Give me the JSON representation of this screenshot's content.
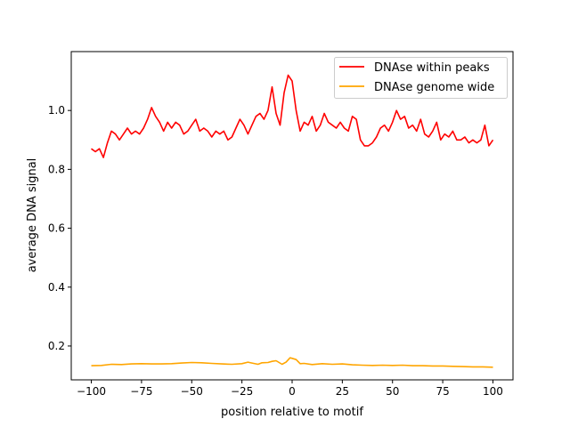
{
  "chart_data": {
    "type": "line",
    "title": "",
    "xlabel": "position relative to motif",
    "ylabel": "average DNA signal",
    "xlim": [
      -110,
      110
    ],
    "ylim": [
      0.085,
      1.2
    ],
    "xticks": [
      -100,
      -75,
      -50,
      -25,
      0,
      25,
      50,
      75,
      100
    ],
    "xtick_labels": [
      "−100",
      "−75",
      "−50",
      "−25",
      "0",
      "25",
      "50",
      "75",
      "100"
    ],
    "yticks": [
      0.2,
      0.4,
      0.6,
      0.8,
      1.0
    ],
    "ytick_labels": [
      "0.2",
      "0.4",
      "0.6",
      "0.8",
      "1.0"
    ],
    "grid": false,
    "legend_position": "top-right",
    "series": [
      {
        "name": "DNAse within peaks",
        "color": "#ff0000",
        "x": [
          -100,
          -98,
          -96,
          -94,
          -92,
          -90,
          -88,
          -86,
          -84,
          -82,
          -80,
          -78,
          -76,
          -74,
          -72,
          -70,
          -68,
          -66,
          -64,
          -62,
          -60,
          -58,
          -56,
          -54,
          -52,
          -50,
          -48,
          -46,
          -44,
          -42,
          -40,
          -38,
          -36,
          -34,
          -32,
          -30,
          -28,
          -26,
          -24,
          -22,
          -20,
          -18,
          -16,
          -14,
          -12,
          -10,
          -8,
          -6,
          -4,
          -2,
          0,
          2,
          4,
          6,
          8,
          10,
          12,
          14,
          16,
          18,
          20,
          22,
          24,
          26,
          28,
          30,
          32,
          34,
          36,
          38,
          40,
          42,
          44,
          46,
          48,
          50,
          52,
          54,
          56,
          58,
          60,
          62,
          64,
          66,
          68,
          70,
          72,
          74,
          76,
          78,
          80,
          82,
          84,
          86,
          88,
          90,
          92,
          94,
          96,
          98,
          100
        ],
        "values": [
          0.87,
          0.86,
          0.87,
          0.84,
          0.89,
          0.93,
          0.92,
          0.9,
          0.92,
          0.94,
          0.92,
          0.93,
          0.92,
          0.94,
          0.97,
          1.01,
          0.98,
          0.96,
          0.93,
          0.96,
          0.94,
          0.96,
          0.95,
          0.92,
          0.93,
          0.95,
          0.97,
          0.93,
          0.94,
          0.93,
          0.91,
          0.93,
          0.92,
          0.93,
          0.9,
          0.91,
          0.94,
          0.97,
          0.95,
          0.92,
          0.95,
          0.98,
          0.99,
          0.97,
          1.0,
          1.08,
          0.99,
          0.95,
          1.06,
          1.12,
          1.1,
          1.0,
          0.93,
          0.96,
          0.95,
          0.98,
          0.93,
          0.95,
          0.99,
          0.96,
          0.95,
          0.94,
          0.96,
          0.94,
          0.93,
          0.98,
          0.97,
          0.9,
          0.88,
          0.88,
          0.89,
          0.91,
          0.94,
          0.95,
          0.93,
          0.96,
          1.0,
          0.97,
          0.98,
          0.94,
          0.95,
          0.93,
          0.97,
          0.92,
          0.91,
          0.93,
          0.96,
          0.9,
          0.92,
          0.91,
          0.93,
          0.9,
          0.9,
          0.91,
          0.89,
          0.9,
          0.89,
          0.9,
          0.95,
          0.88,
          0.9
        ]
      },
      {
        "name": "DNAse genome wide",
        "color": "#ffa500",
        "x": [
          -100,
          -95,
          -90,
          -85,
          -80,
          -75,
          -70,
          -65,
          -60,
          -55,
          -50,
          -45,
          -40,
          -35,
          -30,
          -25,
          -22,
          -20,
          -17,
          -15,
          -12,
          -10,
          -8,
          -5,
          -3,
          -1,
          0,
          2,
          4,
          6,
          10,
          15,
          20,
          25,
          30,
          35,
          40,
          45,
          50,
          55,
          60,
          65,
          70,
          75,
          80,
          85,
          90,
          95,
          100
        ],
        "values": [
          0.133,
          0.134,
          0.138,
          0.137,
          0.139,
          0.14,
          0.139,
          0.139,
          0.14,
          0.142,
          0.144,
          0.143,
          0.141,
          0.139,
          0.138,
          0.14,
          0.145,
          0.142,
          0.138,
          0.143,
          0.144,
          0.148,
          0.15,
          0.138,
          0.145,
          0.16,
          0.158,
          0.154,
          0.14,
          0.141,
          0.137,
          0.14,
          0.138,
          0.139,
          0.136,
          0.135,
          0.134,
          0.135,
          0.134,
          0.135,
          0.133,
          0.133,
          0.132,
          0.132,
          0.131,
          0.13,
          0.129,
          0.129,
          0.128
        ]
      }
    ]
  }
}
